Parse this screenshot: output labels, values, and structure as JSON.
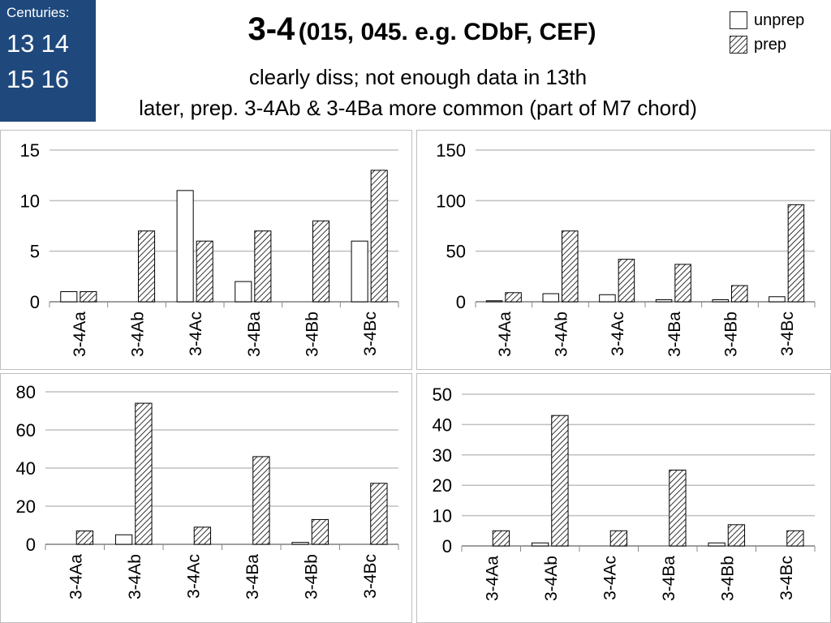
{
  "header": {
    "centuries_label": "Centuries:",
    "centuries": [
      "13",
      "14",
      "15",
      "16"
    ],
    "title_main": "3-4",
    "title_detail": "(015, 045. e.g. CDbF, CEF)",
    "subtitle_1": "clearly diss; not enough data in 13th",
    "subtitle_2": "later, prep. 3-4Ab & 3-4Ba more common (part of M7 chord)"
  },
  "legend": {
    "unprep": "unprep",
    "prep": "prep"
  },
  "colors": {
    "badge": "#1f497d",
    "unprep_fill": "#ffffff",
    "grid": "#bfbfbf"
  },
  "chart_data": [
    {
      "type": "bar",
      "categories": [
        "3-4Aa",
        "3-4Ab",
        "3-4Ac",
        "3-4Ba",
        "3-4Bb",
        "3-4Bc"
      ],
      "series": [
        {
          "name": "unprep",
          "values": [
            1,
            0,
            11,
            2,
            0,
            6
          ]
        },
        {
          "name": "prep",
          "values": [
            1,
            7,
            6,
            7,
            8,
            13
          ]
        }
      ],
      "ylim": [
        0,
        15
      ],
      "yticks": [
        0,
        5,
        10,
        15
      ],
      "grid": true
    },
    {
      "type": "bar",
      "categories": [
        "3-4Aa",
        "3-4Ab",
        "3-4Ac",
        "3-4Ba",
        "3-4Bb",
        "3-4Bc"
      ],
      "series": [
        {
          "name": "unprep",
          "values": [
            1,
            8,
            7,
            2,
            2,
            5
          ]
        },
        {
          "name": "prep",
          "values": [
            9,
            70,
            42,
            37,
            16,
            96
          ]
        }
      ],
      "ylim": [
        0,
        150
      ],
      "yticks": [
        0,
        50,
        100,
        150
      ],
      "grid": true
    },
    {
      "type": "bar",
      "categories": [
        "3-4Aa",
        "3-4Ab",
        "3-4Ac",
        "3-4Ba",
        "3-4Bb",
        "3-4Bc"
      ],
      "series": [
        {
          "name": "unprep",
          "values": [
            0,
            5,
            0,
            0,
            1,
            0
          ]
        },
        {
          "name": "prep",
          "values": [
            7,
            74,
            9,
            46,
            13,
            32
          ]
        }
      ],
      "ylim": [
        0,
        80
      ],
      "yticks": [
        0,
        20,
        40,
        60,
        80
      ],
      "grid": true
    },
    {
      "type": "bar",
      "categories": [
        "3-4Aa",
        "3-4Ab",
        "3-4Ac",
        "3-4Ba",
        "3-4Bb",
        "3-4Bc"
      ],
      "series": [
        {
          "name": "unprep",
          "values": [
            0,
            1,
            0,
            0,
            1,
            0
          ]
        },
        {
          "name": "prep",
          "values": [
            5,
            43,
            5,
            25,
            7,
            5
          ]
        }
      ],
      "ylim": [
        0,
        50
      ],
      "yticks": [
        0,
        10,
        20,
        30,
        40,
        50
      ],
      "grid": true
    }
  ]
}
